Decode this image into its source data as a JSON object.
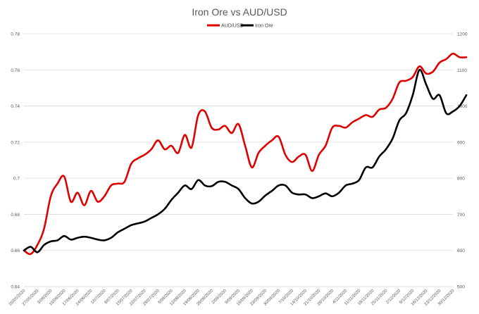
{
  "chart_data": {
    "type": "line",
    "title": "Iron Ore vs AUD/USD",
    "legend_position": "top",
    "grid": true,
    "y_left": {
      "min": 0.64,
      "max": 0.78,
      "step": 0.02,
      "ticks": [
        "0.64",
        "0.66",
        "0.68",
        "0.7",
        "0.72",
        "0.74",
        "0.76",
        "0.78"
      ]
    },
    "y_right": {
      "min": 500,
      "max": 1200,
      "step": 100,
      "ticks": [
        "500",
        "600",
        "700",
        "800",
        "900",
        "1000",
        "1100",
        "1200"
      ]
    },
    "x_labels": [
      "20/05/2020",
      "27/05/2020",
      "3/06/2020",
      "10/06/2020",
      "17/06/2020",
      "24/06/2020",
      "1/07/2020",
      "8/07/2020",
      "15/07/2020",
      "22/07/2020",
      "29/07/2020",
      "5/08/2020",
      "12/08/2020",
      "19/08/2020",
      "26/08/2020",
      "2/09/2020",
      "9/09/2020",
      "16/09/2020",
      "23/09/2020",
      "30/09/2020",
      "7/10/2020",
      "14/10/2020",
      "21/10/2020",
      "28/10/2020",
      "4/11/2020",
      "11/11/2020",
      "18/11/2020",
      "25/11/2020",
      "2/12/2020",
      "9/12/2020",
      "16/12/2020",
      "23/12/2020",
      "30/12/2020"
    ],
    "series": [
      {
        "name": "AUD/USD",
        "color": "#e00000",
        "axis": "left",
        "x": [
          0,
          0.5,
          1,
          1.5,
          2,
          2.5,
          3,
          3.5,
          4,
          4.5,
          5,
          5.5,
          6,
          6.5,
          7,
          7.5,
          8,
          8.5,
          9,
          9.5,
          10,
          10.5,
          11,
          11.5,
          12,
          12.5,
          13,
          13.5,
          14,
          14.5,
          15,
          15.5,
          16,
          16.5,
          17,
          17.5,
          18,
          18.5,
          19,
          19.5,
          20,
          20.5,
          21,
          21.5,
          22,
          22.5,
          23,
          23.5,
          24,
          24.5,
          25,
          25.5,
          26,
          26.5,
          27,
          27.5,
          28,
          28.5,
          29,
          29.5,
          30,
          30.5,
          31,
          31.5,
          32,
          32.5,
          33
        ],
        "values": [
          0.66,
          0.658,
          0.663,
          0.672,
          0.69,
          0.697,
          0.701,
          0.687,
          0.692,
          0.685,
          0.693,
          0.687,
          0.69,
          0.696,
          0.697,
          0.698,
          0.708,
          0.711,
          0.713,
          0.716,
          0.721,
          0.716,
          0.718,
          0.714,
          0.724,
          0.717,
          0.735,
          0.737,
          0.728,
          0.727,
          0.729,
          0.725,
          0.73,
          0.718,
          0.706,
          0.714,
          0.718,
          0.721,
          0.723,
          0.713,
          0.709,
          0.712,
          0.713,
          0.704,
          0.713,
          0.718,
          0.728,
          0.729,
          0.728,
          0.731,
          0.733,
          0.735,
          0.734,
          0.738,
          0.739,
          0.744,
          0.753,
          0.754,
          0.756,
          0.762,
          0.758,
          0.759,
          0.764,
          0.766,
          0.769,
          0.767,
          0.767
        ]
      },
      {
        "name": "Iron Ore",
        "color": "#000000",
        "axis": "right",
        "x": [
          0,
          0.5,
          1,
          1.5,
          2,
          2.5,
          3,
          3.5,
          4,
          4.5,
          5,
          5.5,
          6,
          6.5,
          7,
          7.5,
          8,
          8.5,
          9,
          9.5,
          10,
          10.5,
          11,
          11.5,
          12,
          12.5,
          13,
          13.5,
          14,
          14.5,
          15,
          15.5,
          16,
          16.5,
          17,
          17.5,
          18,
          18.5,
          19,
          19.5,
          20,
          20.5,
          21,
          21.5,
          22,
          22.5,
          23,
          23.5,
          24,
          24.5,
          25,
          25.5,
          26,
          26.5,
          27,
          27.5,
          28,
          28.5,
          29,
          29.5,
          30,
          30.5,
          31,
          31.5,
          32,
          32.5,
          33
        ],
        "values": [
          600,
          610,
          595,
          615,
          625,
          628,
          640,
          630,
          635,
          638,
          635,
          630,
          628,
          635,
          650,
          660,
          670,
          675,
          680,
          690,
          700,
          715,
          740,
          760,
          780,
          770,
          795,
          780,
          778,
          790,
          790,
          780,
          770,
          745,
          730,
          735,
          752,
          765,
          780,
          780,
          760,
          755,
          755,
          745,
          750,
          758,
          750,
          760,
          780,
          785,
          795,
          830,
          830,
          860,
          880,
          910,
          960,
          980,
          1030,
          1100,
          1060,
          1020,
          1030,
          980,
          985,
          1000,
          1030
        ]
      }
    ]
  }
}
